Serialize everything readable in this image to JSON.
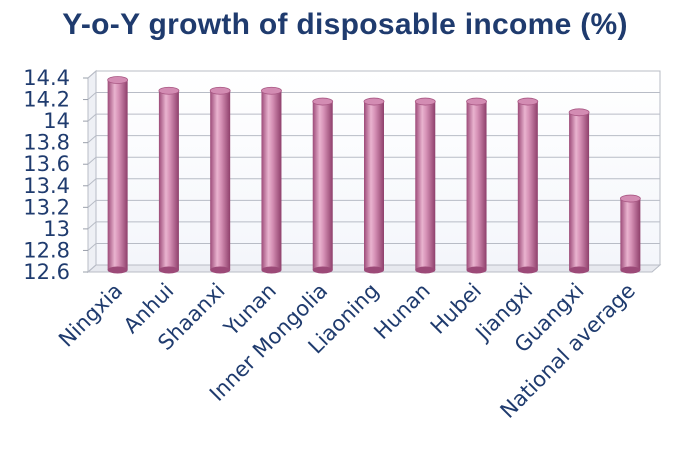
{
  "chart_data": {
    "type": "bar",
    "title": "Y-o-Y growth of disposable income (%)",
    "categories": [
      "Ningxia",
      "Anhui",
      "Shaanxi",
      "Yunan",
      "Inner Mongolia",
      "Liaoning",
      "Hunan",
      "Hubei",
      "Jiangxi",
      "Guangxi",
      "National average"
    ],
    "values": [
      14.4,
      14.3,
      14.3,
      14.3,
      14.2,
      14.2,
      14.2,
      14.2,
      14.2,
      14.1,
      13.3
    ],
    "yticks": [
      "14.4",
      "14.2",
      "14",
      "13.8",
      "13.6",
      "13.4",
      "13.2",
      "13",
      "12.8",
      "12.6"
    ],
    "ylim": [
      12.6,
      14.4
    ],
    "grid": true,
    "bar_color": "#c97aa6",
    "text_color": "#1f3b6e"
  }
}
